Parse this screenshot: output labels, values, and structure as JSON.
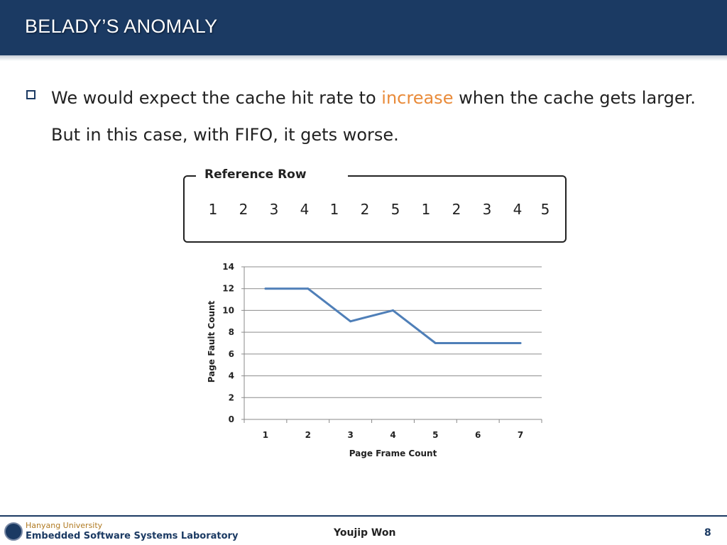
{
  "slide": {
    "title": "BELADY’S ANOMALY",
    "bullet_text_part1": "We would expect the cache hit rate to ",
    "bullet_highlight": "increase",
    "bullet_text_part2": " when the cache gets larger. But in this case, with FIFO, it gets worse.",
    "highlight_color": "#e98b3a",
    "accent_color": "#1b3a63"
  },
  "reference": {
    "label": "Reference Row",
    "sequence": [
      "1",
      "2",
      "3",
      "4",
      "1",
      "2",
      "5",
      "1",
      "2",
      "3",
      "4",
      "5"
    ]
  },
  "chart_data": {
    "type": "line",
    "x": [
      1,
      2,
      3,
      4,
      5,
      6,
      7
    ],
    "series": [
      {
        "name": "Page Fault Count",
        "values": [
          12,
          12,
          9,
          10,
          7,
          7,
          7
        ],
        "color": "#4f7fb8"
      }
    ],
    "xlabel": "Page Frame Count",
    "ylabel": "Page Fault Count",
    "ylim": [
      0,
      14
    ],
    "yticks": [
      0,
      2,
      4,
      6,
      8,
      10,
      12,
      14
    ],
    "xticks": [
      1,
      2,
      3,
      4,
      5,
      6,
      7
    ],
    "grid": true
  },
  "footer": {
    "university": "Hanyang University",
    "lab": "Embedded Software Systems Laboratory",
    "author": "Youjip Won",
    "page": "8"
  }
}
